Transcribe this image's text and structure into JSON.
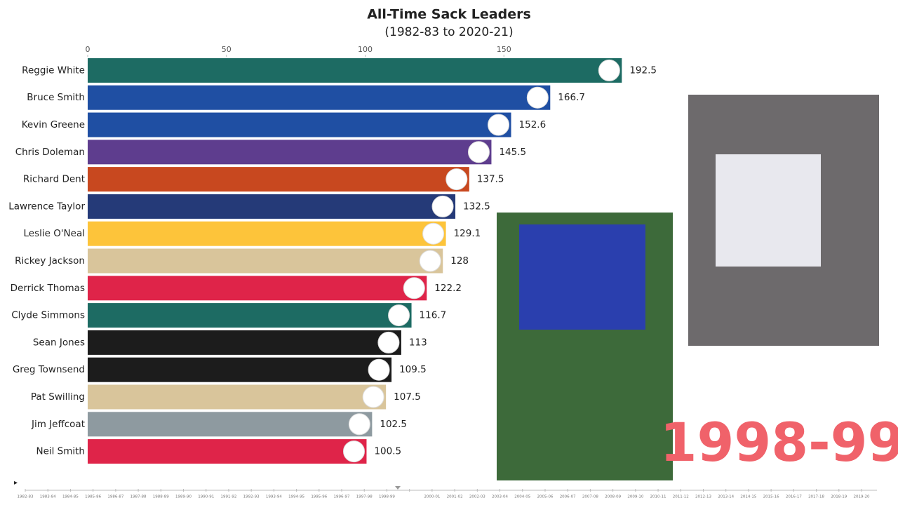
{
  "chart_data": {
    "type": "hbar",
    "title": "All-Time Sack Leaders",
    "subtitle": "(1982-83 to 2020-21)",
    "categories": [
      "Reggie White",
      "Bruce Smith",
      "Kevin Greene",
      "Chris Doleman",
      "Richard Dent",
      "Lawrence Taylor",
      "Leslie O'Neal",
      "Rickey Jackson",
      "Derrick Thomas",
      "Clyde Simmons",
      "Sean Jones",
      "Greg Townsend",
      "Pat Swilling",
      "Jim Jeffcoat",
      "Neil Smith"
    ],
    "values": [
      192.5,
      166.7,
      152.6,
      145.5,
      137.5,
      132.5,
      129.1,
      128,
      122.2,
      116.7,
      113,
      109.5,
      107.5,
      102.5,
      100.5
    ],
    "colors": [
      "#1d6b63",
      "#1f4fa3",
      "#1f4fa3",
      "#5e3d8e",
      "#c8481f",
      "#253a78",
      "#fdc43a",
      "#d9c59b",
      "#df2449",
      "#1d6b63",
      "#1c1c1c",
      "#1c1c1c",
      "#d9c59b",
      "#8e9aa0",
      "#df2449"
    ],
    "xlim": [
      0,
      200
    ],
    "xticks": [
      0,
      50,
      100,
      150
    ],
    "period_label": "1998-99",
    "timeline": [
      "1982-83",
      "1983-84",
      "1984-85",
      "1985-86",
      "1986-87",
      "1987-88",
      "1988-89",
      "1989-90",
      "1990-91",
      "1991-92",
      "1992-93",
      "1993-94",
      "1994-95",
      "1995-96",
      "1996-97",
      "1997-98",
      "1998-99",
      null,
      "2000-01",
      "2001-02",
      "2002-03",
      "2003-04",
      "2004-05",
      "2005-06",
      "2006-07",
      "2007-08",
      "2008-09",
      "2009-10",
      "2010-11",
      "2011-12",
      "2012-13",
      "2013-14",
      "2014-15",
      "2015-16",
      "2016-17",
      "2017-18",
      "2018-19",
      "2019-20"
    ]
  }
}
